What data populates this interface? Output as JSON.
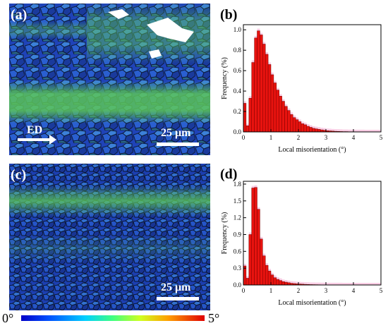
{
  "panels": {
    "a": "(a)",
    "b": "(b)",
    "c": "(c)",
    "d": "(d)"
  },
  "map_a": {
    "direction_label": "ED",
    "scale_label": "25 μm"
  },
  "map_c": {
    "scale_label": "25 μm"
  },
  "colorbar": {
    "min_label": "0°",
    "max_label": "5°"
  },
  "colors": {
    "bar": "#e8130f",
    "bar_edge": "#7a0000",
    "pink_halo": "#f6b8d8"
  },
  "chart_data": [
    {
      "type": "bar",
      "panel": "b",
      "xlabel": "Local misorientation (°)",
      "ylabel": "Frequency (%)",
      "xlim": [
        0,
        5
      ],
      "ylim": [
        0,
        1.05
      ],
      "xticks": [
        "0",
        "1",
        "2",
        "3",
        "4",
        "5"
      ],
      "yticks": [
        "0.0",
        "0.2",
        "0.4",
        "0.6",
        "0.8",
        "1.0"
      ],
      "x": [
        0.05,
        0.15,
        0.25,
        0.35,
        0.45,
        0.55,
        0.65,
        0.75,
        0.85,
        0.95,
        1.05,
        1.15,
        1.25,
        1.35,
        1.45,
        1.55,
        1.65,
        1.75,
        1.85,
        1.95,
        2.05,
        2.15,
        2.25,
        2.35,
        2.45,
        2.55,
        2.65,
        2.75,
        2.85,
        2.95,
        3.05,
        3.15,
        3.25,
        3.35,
        3.45,
        3.55,
        3.65,
        3.75,
        3.85,
        3.95,
        4.05,
        4.15,
        4.25,
        4.35,
        4.45,
        4.55,
        4.65,
        4.75,
        4.85,
        4.95
      ],
      "values": [
        0.28,
        0.06,
        0.33,
        0.68,
        0.92,
        0.99,
        0.95,
        0.86,
        0.76,
        0.66,
        0.56,
        0.48,
        0.41,
        0.35,
        0.3,
        0.25,
        0.21,
        0.17,
        0.14,
        0.12,
        0.1,
        0.08,
        0.07,
        0.055,
        0.045,
        0.035,
        0.03,
        0.025,
        0.02,
        0.016,
        0.012,
        0.01,
        0.008,
        0.006,
        0.005,
        0.004,
        0.003,
        0.003,
        0.002,
        0.002,
        0.001,
        0.001,
        0.001,
        0.001,
        0.0,
        0.0,
        0.0,
        0.0,
        0.0,
        0.0
      ]
    },
    {
      "type": "bar",
      "panel": "d",
      "xlabel": "Local misorientation (°)",
      "ylabel": "Frequency (%)",
      "xlim": [
        0,
        5
      ],
      "ylim": [
        0,
        1.85
      ],
      "xticks": [
        "0",
        "1",
        "2",
        "3",
        "4",
        "5"
      ],
      "yticks": [
        "0.0",
        "0.3",
        "0.6",
        "0.9",
        "1.2",
        "1.5",
        "1.8"
      ],
      "x": [
        0.05,
        0.15,
        0.25,
        0.35,
        0.45,
        0.55,
        0.65,
        0.75,
        0.85,
        0.95,
        1.05,
        1.15,
        1.25,
        1.35,
        1.45,
        1.55,
        1.65,
        1.75,
        1.85,
        1.95,
        2.05,
        2.15,
        2.25,
        2.35,
        2.45,
        2.55,
        2.65,
        2.75,
        2.85,
        2.95,
        3.05,
        3.15,
        3.25,
        3.35,
        3.45,
        3.55,
        3.65,
        3.75,
        3.85,
        3.95,
        4.05,
        4.15,
        4.25,
        4.35,
        4.45,
        4.55,
        4.65,
        4.75,
        4.85,
        4.95
      ],
      "values": [
        0.34,
        0.12,
        0.9,
        1.73,
        1.74,
        1.35,
        0.82,
        0.52,
        0.35,
        0.25,
        0.18,
        0.13,
        0.1,
        0.08,
        0.06,
        0.05,
        0.04,
        0.03,
        0.025,
        0.02,
        0.017,
        0.014,
        0.011,
        0.009,
        0.007,
        0.006,
        0.005,
        0.004,
        0.003,
        0.003,
        0.002,
        0.002,
        0.001,
        0.001,
        0.001,
        0.001,
        0.0,
        0.0,
        0.0,
        0.0,
        0.0,
        0.0,
        0.0,
        0.0,
        0.0,
        0.0,
        0.0,
        0.0,
        0.0,
        0.0
      ]
    }
  ]
}
